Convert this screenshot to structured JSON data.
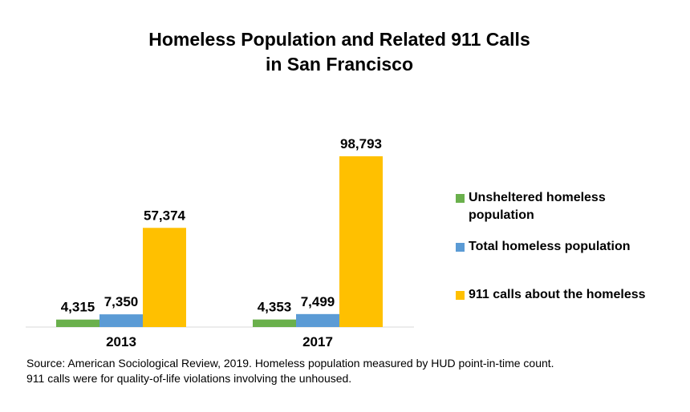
{
  "chart_data": {
    "type": "bar",
    "title": "Homeless Population and Related 911 Calls in San Francisco",
    "title_lines": [
      "Homeless Population and Related 911 Calls",
      "in San Francisco"
    ],
    "categories": [
      "2013",
      "2017"
    ],
    "series": [
      {
        "name": "Unsheltered homeless population",
        "color": "#6ab04c",
        "values": [
          4315,
          4353
        ],
        "labels": [
          "4,315",
          "4,353"
        ]
      },
      {
        "name": "Total homeless population",
        "color": "#5b9bd5",
        "values": [
          7350,
          7499
        ],
        "labels": [
          "7,350",
          "7,499"
        ]
      },
      {
        "name": "911 calls about the homeless",
        "color": "#ffc000",
        "values": [
          57374,
          98793
        ],
        "labels": [
          "57,374",
          "98,793"
        ]
      }
    ],
    "legend_lines": [
      [
        "Unsheltered homeless",
        "population"
      ],
      [
        "Total homeless population"
      ],
      [
        "911 calls about the homeless"
      ]
    ],
    "ylim": [
      0,
      115000
    ],
    "grid": false,
    "legend_position": "right"
  },
  "source_note": [
    "Source: American Sociological Review, 2019.  Homeless population measured by HUD point-in-time count.",
    "911 calls were for quality-of-life violations involving the unhoused."
  ]
}
